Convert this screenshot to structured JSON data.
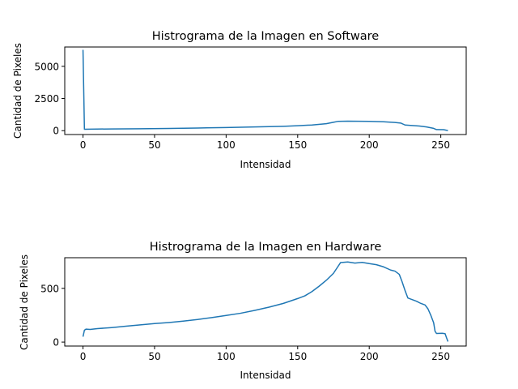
{
  "colors": {
    "line": "#1f77b4",
    "axes": "#000000",
    "background": "#ffffff"
  },
  "chart_data": [
    {
      "type": "line",
      "title": "Histrograma de la Imagen en Software",
      "xlabel": "Intensidad",
      "ylabel": "Cantidad de Pixeles",
      "xlim": [
        -12.75,
        267.75
      ],
      "ylim": [
        -300,
        6500
      ],
      "xticks": [
        0,
        50,
        100,
        150,
        200,
        250
      ],
      "yticks": [
        0,
        2500,
        5000
      ],
      "grid": false,
      "series": [
        {
          "points": [
            [
              0,
              6280
            ],
            [
              1,
              110
            ],
            [
              5,
              120
            ],
            [
              20,
              135
            ],
            [
              40,
              150
            ],
            [
              60,
              175
            ],
            [
              80,
              205
            ],
            [
              100,
              245
            ],
            [
              120,
              290
            ],
            [
              140,
              340
            ],
            [
              150,
              385
            ],
            [
              160,
              440
            ],
            [
              170,
              540
            ],
            [
              175,
              650
            ],
            [
              178,
              720
            ],
            [
              185,
              740
            ],
            [
              200,
              720
            ],
            [
              210,
              690
            ],
            [
              218,
              640
            ],
            [
              222,
              590
            ],
            [
              225,
              440
            ],
            [
              230,
              400
            ],
            [
              235,
              360
            ],
            [
              240,
              290
            ],
            [
              245,
              180
            ],
            [
              247,
              85
            ],
            [
              252,
              80
            ],
            [
              255,
              5
            ]
          ]
        }
      ]
    },
    {
      "type": "line",
      "title": "Histrograma de la Imagen en Hardware",
      "xlabel": "Intensidad",
      "ylabel": "Cantidad de Pixeles",
      "xlim": [
        -12.75,
        267.75
      ],
      "ylim": [
        -37,
        785
      ],
      "xticks": [
        0,
        50,
        100,
        150,
        200,
        250
      ],
      "yticks": [
        0,
        500
      ],
      "grid": false,
      "series": [
        {
          "points": [
            [
              0,
              50
            ],
            [
              1,
              110
            ],
            [
              2,
              120
            ],
            [
              5,
              118
            ],
            [
              10,
              125
            ],
            [
              20,
              135
            ],
            [
              30,
              148
            ],
            [
              40,
              160
            ],
            [
              50,
              172
            ],
            [
              60,
              182
            ],
            [
              70,
              195
            ],
            [
              80,
              210
            ],
            [
              90,
              228
            ],
            [
              100,
              248
            ],
            [
              110,
              268
            ],
            [
              120,
              295
            ],
            [
              130,
              325
            ],
            [
              140,
              360
            ],
            [
              150,
              405
            ],
            [
              155,
              430
            ],
            [
              160,
              470
            ],
            [
              165,
              520
            ],
            [
              170,
              575
            ],
            [
              175,
              640
            ],
            [
              178,
              700
            ],
            [
              180,
              740
            ],
            [
              185,
              745
            ],
            [
              190,
              735
            ],
            [
              195,
              742
            ],
            [
              200,
              730
            ],
            [
              205,
              720
            ],
            [
              210,
              700
            ],
            [
              215,
              670
            ],
            [
              218,
              660
            ],
            [
              221,
              630
            ],
            [
              223,
              560
            ],
            [
              225,
              480
            ],
            [
              227,
              410
            ],
            [
              230,
              395
            ],
            [
              233,
              380
            ],
            [
              236,
              360
            ],
            [
              239,
              345
            ],
            [
              241,
              310
            ],
            [
              243,
              250
            ],
            [
              245,
              180
            ],
            [
              246,
              100
            ],
            [
              247,
              80
            ],
            [
              251,
              82
            ],
            [
              253,
              78
            ],
            [
              254,
              40
            ],
            [
              255,
              5
            ]
          ]
        }
      ]
    }
  ]
}
